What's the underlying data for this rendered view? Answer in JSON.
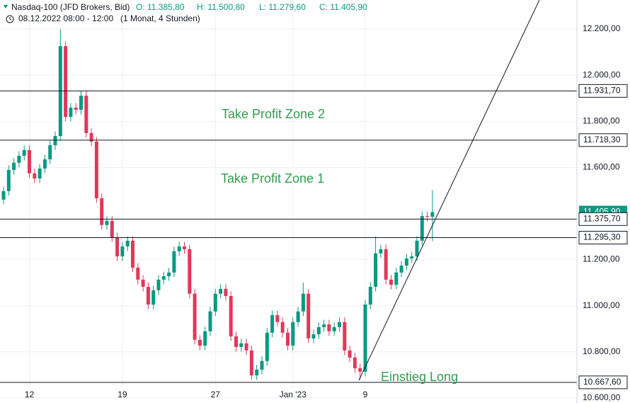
{
  "chart_data": {
    "type": "candlestick",
    "header": {
      "symbol": "Nasdaq-100 (JFD Brokers, Bid)",
      "ohlc": [
        "O: 11.385,80",
        "H: 11.500,80",
        "L: 11.279,60",
        "C: 11.405,90"
      ],
      "period": "08.12.2022 08:00 - 12:00",
      "interval": "(1 Monat, 4 Stunden)"
    },
    "open": [
      11460,
      11497,
      11589,
      11620,
      11650,
      11675,
      11574,
      11552,
      11595,
      11635,
      11696,
      11736,
      12126,
      11819,
      11859,
      11850,
      11911,
      11749,
      11712,
      11466,
      11350,
      11368,
      11297,
      11214,
      11257,
      11282,
      11165,
      11113,
      11082,
      11005,
      11067,
      11113,
      11128,
      11144,
      11236,
      11257,
      11245,
      11052,
      10852,
      10827,
      10889,
      10975,
      11052,
      11073,
      11042,
      10867,
      10821,
      10837,
      10806,
      10698,
      10723,
      10760,
      10883,
      10959,
      10929,
      10883,
      10827,
      10929,
      10975,
      11052,
      10858,
      10876,
      10907,
      10919,
      10889,
      10907,
      10929,
      10806,
      10775,
      10729,
      10714,
      11005,
      11082,
      11227,
      11245,
      11113,
      11091,
      11144,
      11174,
      11205,
      11214,
      11282,
      11389,
      11385.8
    ],
    "high": [
      11517,
      11609,
      11640,
      11670,
      11695,
      11695,
      11594,
      11615,
      11655,
      11716,
      11756,
      12200,
      12146,
      11879,
      11879,
      11931,
      11931,
      11769,
      11732,
      11486,
      11388,
      11388,
      11317,
      11277,
      11302,
      11302,
      11185,
      11133,
      11102,
      11087,
      11133,
      11148,
      11164,
      11256,
      11277,
      11277,
      11265,
      11072,
      10872,
      10909,
      10995,
      11072,
      11093,
      11093,
      11062,
      10887,
      10857,
      10857,
      10826,
      10743,
      10780,
      10903,
      10979,
      10979,
      10949,
      10903,
      10949,
      10995,
      11100,
      11072,
      10896,
      10927,
      10939,
      10939,
      10927,
      10949,
      10949,
      10826,
      10795,
      10749,
      11025,
      11102,
      11300,
      11265,
      11265,
      11133,
      11164,
      11194,
      11225,
      11234,
      11302,
      11409,
      11409,
      11500.8
    ],
    "low": [
      11440,
      11477,
      11569,
      11600,
      11630,
      11554,
      11532,
      11532,
      11575,
      11615,
      11676,
      11716,
      11799,
      11799,
      11830,
      11830,
      11729,
      11692,
      11446,
      11330,
      11330,
      11277,
      11194,
      11194,
      11237,
      11145,
      11093,
      11062,
      10985,
      10985,
      11047,
      11093,
      11108,
      11124,
      11216,
      11225,
      11032,
      10832,
      10807,
      10807,
      10869,
      10955,
      11032,
      11022,
      10847,
      10801,
      10801,
      10786,
      10678,
      10678,
      10703,
      10740,
      10863,
      10909,
      10863,
      10807,
      10807,
      10909,
      10955,
      10838,
      10838,
      10856,
      10887,
      10869,
      10869,
      10887,
      10786,
      10755,
      10709,
      10680,
      10694,
      10985,
      11062,
      11207,
      11093,
      11071,
      11071,
      11124,
      11154,
      11185,
      11194,
      11262,
      11366,
      11279.6
    ],
    "close": [
      11497,
      11589,
      11620,
      11650,
      11675,
      11574,
      11552,
      11595,
      11635,
      11696,
      11736,
      12126,
      11819,
      11859,
      11850,
      11911,
      11749,
      11712,
      11466,
      11350,
      11368,
      11297,
      11214,
      11257,
      11282,
      11165,
      11113,
      11082,
      11005,
      11067,
      11113,
      11128,
      11144,
      11236,
      11257,
      11245,
      11052,
      10852,
      10827,
      10889,
      10975,
      11052,
      11073,
      11042,
      10867,
      10821,
      10837,
      10806,
      10698,
      10723,
      10760,
      10883,
      10959,
      10929,
      10883,
      10827,
      10929,
      10975,
      11052,
      10858,
      10876,
      10907,
      10919,
      10889,
      10907,
      10929,
      10806,
      10775,
      10729,
      10714,
      11005,
      11082,
      11227,
      11245,
      11113,
      11091,
      11144,
      11174,
      11205,
      11214,
      11282,
      11389,
      11385.8,
      11405.9
    ],
    "up_color": "#089981",
    "down_color": "#e0385a",
    "ylim": [
      10578,
      12326
    ],
    "yticks": [
      {
        "value": 12200,
        "label": "12.200,00"
      },
      {
        "value": 12000,
        "label": "12.000,00"
      },
      {
        "value": 11800,
        "label": "11.800,00"
      },
      {
        "value": 11600,
        "label": "11.600,00"
      },
      {
        "value": 11200,
        "label": "11.200,00"
      },
      {
        "value": 11000,
        "label": "11.000,00"
      },
      {
        "value": 10800,
        "label": "10.800,00"
      },
      {
        "value": 10600,
        "label": "10.600,00"
      }
    ],
    "xticks": [
      {
        "value": 5,
        "label": "12"
      },
      {
        "value": 23,
        "label": "19"
      },
      {
        "value": 41,
        "label": "27"
      },
      {
        "value": 56,
        "label": "Jan '23"
      },
      {
        "value": 70,
        "label": "9"
      }
    ],
    "last_price": {
      "value": 11405.9,
      "label": "11.405,90"
    },
    "levels": [
      {
        "value": 11931.7,
        "label": "11.931,70"
      },
      {
        "value": 11718.3,
        "label": "11.718,30"
      },
      {
        "value": 11375.7,
        "label": "11.375,70"
      },
      {
        "value": 11295.3,
        "label": "11.295,30"
      },
      {
        "value": 10667.6,
        "label": "10.667,60"
      }
    ],
    "annotations": [
      "Take Profit Zone 2",
      "Take Profit Zone 1",
      "Einstieg Long"
    ],
    "grid": true
  }
}
